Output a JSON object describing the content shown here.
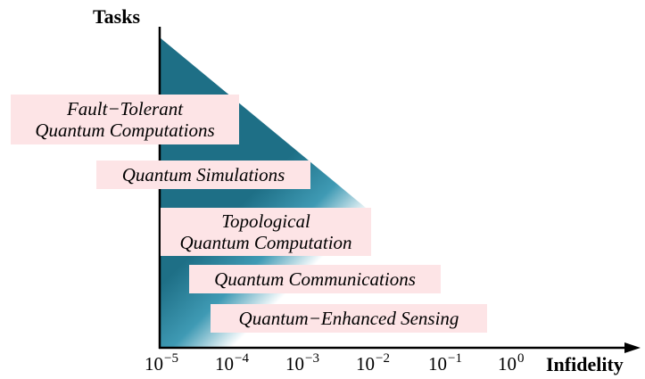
{
  "axes": {
    "y_title": "Tasks",
    "x_title": "Infidelity",
    "x_ticks": [
      {
        "base": "10",
        "exp": "−5"
      },
      {
        "base": "10",
        "exp": "−4"
      },
      {
        "base": "10",
        "exp": "−3"
      },
      {
        "base": "10",
        "exp": "−2"
      },
      {
        "base": "10",
        "exp": "−1"
      },
      {
        "base": "10",
        "exp": "0"
      }
    ]
  },
  "tasks": [
    {
      "lines": [
        "Fault−Tolerant",
        "Quantum Computations"
      ]
    },
    {
      "lines": [
        "Quantum Simulations"
      ]
    },
    {
      "lines": [
        "Topological",
        "Quantum Computation"
      ]
    },
    {
      "lines": [
        "Quantum Communications"
      ]
    },
    {
      "lines": [
        "Quantum−Enhanced Sensing"
      ]
    }
  ],
  "colors": {
    "triangle_dark": "#1e6f86",
    "triangle_mid": "#3f9ab4",
    "triangle_fade": "#ffffff",
    "label_background": "#fde4e6",
    "axis": "#000000"
  }
}
